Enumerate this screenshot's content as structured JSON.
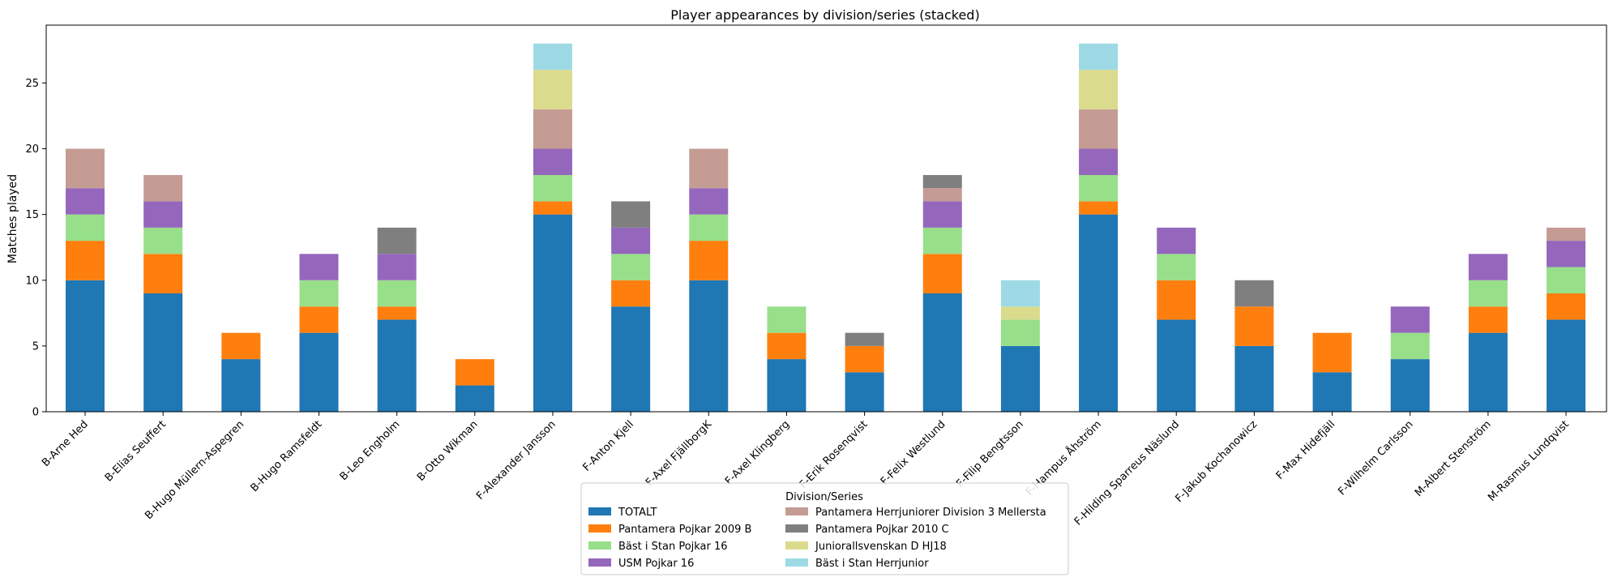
{
  "chart_data": {
    "type": "bar",
    "stacked": true,
    "title": "Player appearances by division/series (stacked)",
    "xlabel": "",
    "ylabel": "Matches played",
    "ylim": [
      0,
      29.4
    ],
    "yticks": [
      0,
      5,
      10,
      15,
      20,
      25
    ],
    "grid": false,
    "legend": {
      "title": "Division/Series",
      "placement": "lower-center",
      "columns": 2
    },
    "categories": [
      "B-Arne Hed",
      "B-Elias Seuffert",
      "B-Hugo Müllern-Aspegren",
      "B-Hugo Ramsfeldt",
      "B-Leo Engholm",
      "B-Otto Wikman",
      "F-Alexander Jansson",
      "F-Anton Kjell",
      "F-Axel FjällborgK",
      "F-Axel Klingberg",
      "F-Erik Rosenqvist",
      "F-Felix Westlund",
      "F-Filip Bengtsson",
      "F-Hampus Åhström",
      "F-Hilding Sparreus Näslund",
      "F-Jakub Kochanowicz",
      "F-Max Hidefjäll",
      "F-Wilhelm Carlsson",
      "M-Albert Stenström",
      "M-Rasmus Lundqvist"
    ],
    "series": [
      {
        "name": "TOTALT",
        "color": "#1f77b4",
        "values": [
          10,
          9,
          4,
          6,
          7,
          2,
          15,
          8,
          10,
          4,
          3,
          9,
          5,
          15,
          7,
          5,
          3,
          4,
          6,
          7
        ]
      },
      {
        "name": "Pantamera Pojkar 2009 B",
        "color": "#ff7f0e",
        "values": [
          3,
          3,
          2,
          2,
          1,
          2,
          1,
          2,
          3,
          2,
          2,
          3,
          0,
          1,
          3,
          3,
          3,
          0,
          2,
          2
        ]
      },
      {
        "name": "Bäst i Stan Pojkar 16",
        "color": "#98df8a",
        "values": [
          2,
          2,
          0,
          2,
          2,
          0,
          2,
          2,
          2,
          2,
          0,
          2,
          2,
          2,
          2,
          0,
          0,
          2,
          2,
          2
        ]
      },
      {
        "name": "USM Pojkar 16",
        "color": "#9467bd",
        "values": [
          2,
          2,
          0,
          2,
          2,
          0,
          2,
          2,
          2,
          0,
          0,
          2,
          0,
          2,
          2,
          0,
          0,
          2,
          2,
          2
        ]
      },
      {
        "name": "Pantamera Herrjuniorer Division 3 Mellersta",
        "color": "#c49c94",
        "values": [
          3,
          2,
          0,
          0,
          0,
          0,
          3,
          0,
          3,
          0,
          0,
          1,
          0,
          3,
          0,
          0,
          0,
          0,
          0,
          1
        ]
      },
      {
        "name": "Pantamera Pojkar 2010 C",
        "color": "#7f7f7f",
        "values": [
          0,
          0,
          0,
          0,
          2,
          0,
          0,
          2,
          0,
          0,
          1,
          1,
          0,
          0,
          0,
          2,
          0,
          0,
          0,
          0
        ]
      },
      {
        "name": "Juniorallsvenskan D HJ18",
        "color": "#dbdb8d",
        "values": [
          0,
          0,
          0,
          0,
          0,
          0,
          3,
          0,
          0,
          0,
          0,
          0,
          1,
          3,
          0,
          0,
          0,
          0,
          0,
          0
        ]
      },
      {
        "name": "Bäst i Stan Herrjunior",
        "color": "#9edae5",
        "values": [
          0,
          0,
          0,
          0,
          0,
          0,
          2,
          0,
          0,
          0,
          0,
          0,
          2,
          2,
          0,
          0,
          0,
          0,
          0,
          0
        ]
      }
    ]
  }
}
